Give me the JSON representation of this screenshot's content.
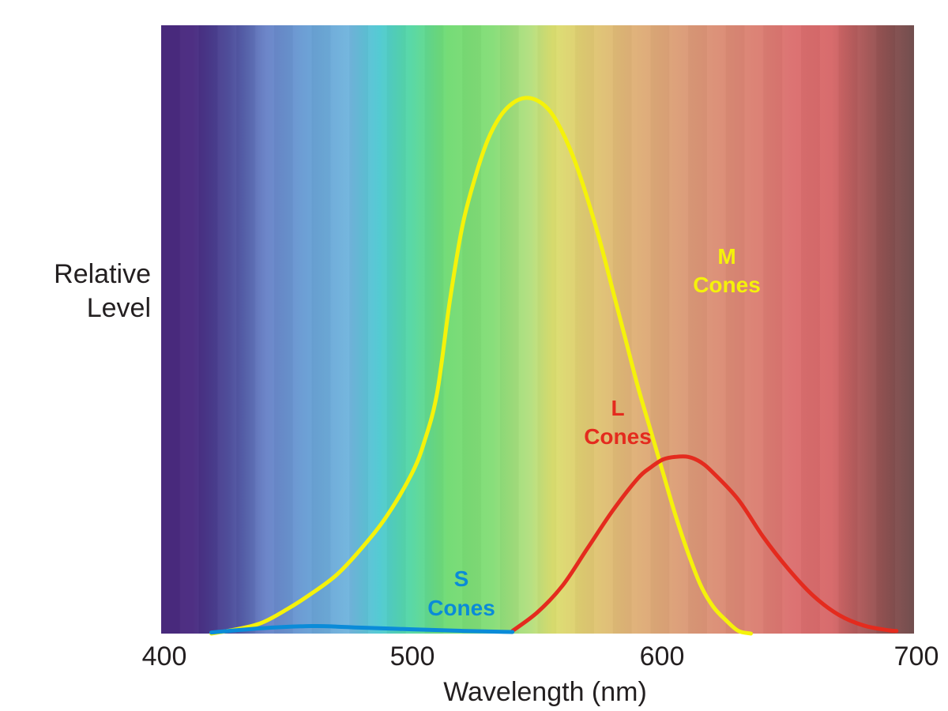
{
  "chart_data": {
    "type": "line",
    "xlabel": "Wavelength (nm)",
    "ylabel_lines": [
      "Relative",
      "Level"
    ],
    "xlim": [
      400,
      700
    ],
    "ylim": [
      0,
      1
    ],
    "xticks": [
      400,
      500,
      600,
      700
    ],
    "grid": false,
    "background": "visible spectrum gradient (violet to deep red)",
    "series": [
      {
        "key": "S",
        "label_lines": [
          "S",
          "Cones"
        ],
        "color": "#0a8bd8",
        "x": [
          420,
          440,
          460,
          470,
          480,
          500,
          520,
          540
        ],
        "y": [
          0.002,
          0.01,
          0.014,
          0.013,
          0.011,
          0.008,
          0.005,
          0.003
        ]
      },
      {
        "key": "M",
        "label_lines": [
          "M",
          "Cones"
        ],
        "color": "#f5f20a",
        "x": [
          420,
          430,
          440,
          450,
          460,
          470,
          480,
          490,
          500,
          505,
          510,
          515,
          520,
          525,
          530,
          535,
          540,
          545,
          550,
          555,
          560,
          565,
          570,
          575,
          580,
          585,
          590,
          595,
          600,
          605,
          610,
          615,
          620,
          625,
          630,
          635
        ],
        "y": [
          0.0,
          0.008,
          0.02,
          0.045,
          0.075,
          0.11,
          0.16,
          0.22,
          0.3,
          0.36,
          0.45,
          0.62,
          0.76,
          0.85,
          0.92,
          0.965,
          0.99,
          1.0,
          0.995,
          0.975,
          0.935,
          0.88,
          0.81,
          0.73,
          0.64,
          0.55,
          0.46,
          0.38,
          0.3,
          0.22,
          0.15,
          0.09,
          0.05,
          0.025,
          0.005,
          0.0
        ]
      },
      {
        "key": "L",
        "label_lines": [
          "L",
          "Cones"
        ],
        "color": "#e42b1e",
        "x": [
          540,
          550,
          560,
          570,
          580,
          590,
          595,
          600,
          605,
          610,
          615,
          620,
          630,
          640,
          650,
          660,
          670,
          680,
          690,
          693
        ],
        "y": [
          0.005,
          0.04,
          0.09,
          0.16,
          0.23,
          0.29,
          0.31,
          0.325,
          0.33,
          0.33,
          0.32,
          0.3,
          0.25,
          0.18,
          0.12,
          0.07,
          0.035,
          0.015,
          0.006,
          0.005
        ]
      }
    ]
  }
}
